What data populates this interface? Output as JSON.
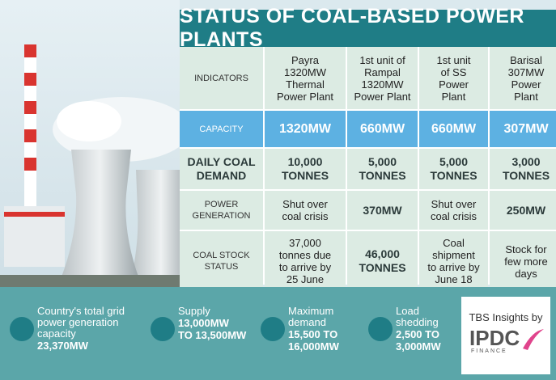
{
  "title": "STATUS OF COAL-BASED POWER PLANTS",
  "table": {
    "header": [
      [
        "INDICATORS"
      ],
      [
        "Payra",
        "1320MW",
        "Thermal",
        "Power Plant"
      ],
      [
        "1st unit of",
        "Rampal",
        "1320MW",
        "Power Plant"
      ],
      [
        "1st unit",
        "of SS",
        "Power",
        "Plant"
      ],
      [
        "Barisal",
        "307MW",
        "Power",
        "Plant"
      ]
    ],
    "rows": [
      [
        [
          "CAPACITY"
        ],
        [
          "1320MW"
        ],
        [
          "660MW"
        ],
        [
          "660MW"
        ],
        [
          "307MW"
        ]
      ],
      [
        [
          "DAILY COAL",
          "DEMAND"
        ],
        [
          "10,000",
          "TONNES"
        ],
        [
          "5,000",
          "TONNES"
        ],
        [
          "5,000",
          "TONNES"
        ],
        [
          "3,000",
          "TONNES"
        ]
      ],
      [
        [
          "POWER",
          "GENERATION"
        ],
        [
          "Shut over",
          "coal crisis"
        ],
        [
          "370MW"
        ],
        [
          "Shut over",
          "coal crisis"
        ],
        [
          "250MW"
        ]
      ],
      [
        [
          "COAL STOCK",
          "STATUS"
        ],
        [
          "37,000",
          "tonnes due",
          "to arrive by",
          "25 June"
        ],
        [
          "46,000",
          "TONNES"
        ],
        [
          "Coal",
          "shipment",
          "to arrive by",
          "June 18"
        ],
        [
          "Stock for",
          "few more",
          "days"
        ]
      ]
    ]
  },
  "stats": [
    {
      "label": [
        "Country's total grid",
        "power generation",
        "capacity"
      ],
      "value": [
        "23,370MW"
      ]
    },
    {
      "label": [
        "Supply"
      ],
      "value": [
        "13,000MW",
        "TO 13,500MW"
      ]
    },
    {
      "label": [
        "Maximum",
        "demand"
      ],
      "value": [
        "15,500 TO",
        "16,000MW"
      ]
    },
    {
      "label": [
        "Load",
        "shedding"
      ],
      "value": [
        "2,500 TO",
        "3,000MW"
      ]
    }
  ],
  "credit": {
    "text": "TBS Insights by",
    "logo": "IPDC",
    "logo_sub": "FINANCE"
  }
}
